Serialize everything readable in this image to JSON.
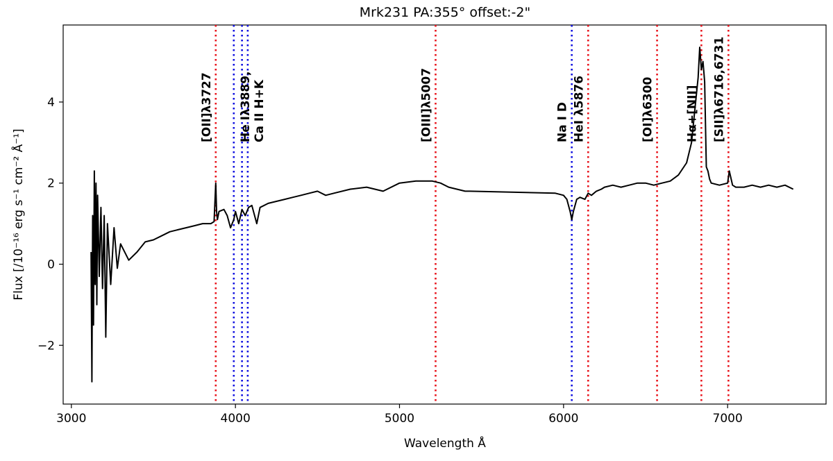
{
  "chart_data": {
    "type": "line",
    "title": "Mrk231 PA:355° offset:-2\"",
    "xlabel": "Wavelength Å",
    "ylabel": "Flux  [/10⁻¹⁶ erg s⁻¹ cm⁻² Å⁻¹]",
    "xlim": [
      2950,
      7600
    ],
    "ylim": [
      -3.45,
      5.9
    ],
    "xticks": [
      3000,
      4000,
      5000,
      6000,
      7000
    ],
    "yticks": [
      -2,
      0,
      2,
      4
    ],
    "grid": false,
    "series": [
      {
        "color": "#000000",
        "x": [
          3120,
          3125,
          3130,
          3135,
          3140,
          3145,
          3150,
          3155,
          3160,
          3170,
          3180,
          3190,
          3200,
          3210,
          3220,
          3240,
          3260,
          3280,
          3300,
          3350,
          3400,
          3450,
          3500,
          3550,
          3600,
          3650,
          3700,
          3750,
          3800,
          3850,
          3870,
          3880,
          3885,
          3890,
          3900,
          3930,
          3950,
          3970,
          3990,
          4000,
          4020,
          4040,
          4060,
          4080,
          4100,
          4130,
          4150,
          4200,
          4250,
          4300,
          4350,
          4400,
          4450,
          4500,
          4550,
          4600,
          4700,
          4800,
          4900,
          5000,
          5100,
          5200,
          5250,
          5300,
          5350,
          5400,
          5430,
          5950,
          6000,
          6020,
          6040,
          6050,
          6060,
          6080,
          6100,
          6130,
          6150,
          6170,
          6200,
          6230,
          6250,
          6300,
          6350,
          6400,
          6450,
          6500,
          6550,
          6600,
          6650,
          6700,
          6750,
          6780,
          6800,
          6820,
          6830,
          6840,
          6850,
          6860,
          6870,
          6880,
          6890,
          6900,
          6950,
          7000,
          7010,
          7030,
          7050,
          7100,
          7150,
          7200,
          7250,
          7300,
          7350,
          7400
        ],
        "y": [
          0.3,
          -2.9,
          1.2,
          -1.5,
          2.3,
          -0.5,
          2.0,
          -1.0,
          1.7,
          -0.3,
          1.4,
          -0.6,
          1.2,
          -1.8,
          1.0,
          -0.5,
          0.9,
          -0.1,
          0.5,
          0.1,
          0.3,
          0.55,
          0.6,
          0.7,
          0.8,
          0.85,
          0.9,
          0.95,
          1.0,
          1.0,
          1.05,
          2.0,
          1.3,
          1.1,
          1.3,
          1.35,
          1.2,
          0.9,
          1.1,
          1.3,
          1.0,
          1.35,
          1.2,
          1.4,
          1.45,
          1.0,
          1.4,
          1.5,
          1.55,
          1.6,
          1.65,
          1.7,
          1.75,
          1.8,
          1.7,
          1.75,
          1.85,
          1.9,
          1.8,
          2.0,
          2.05,
          2.05,
          2.0,
          1.9,
          1.85,
          1.8,
          1.8,
          1.75,
          1.7,
          1.6,
          1.3,
          1.1,
          1.3,
          1.6,
          1.65,
          1.6,
          1.75,
          1.7,
          1.8,
          1.85,
          1.9,
          1.95,
          1.9,
          1.95,
          2.0,
          2.0,
          1.95,
          2.0,
          2.05,
          2.2,
          2.5,
          3.0,
          3.8,
          4.6,
          5.35,
          4.8,
          5.0,
          4.5,
          2.4,
          2.3,
          2.1,
          2.0,
          1.95,
          2.0,
          2.3,
          1.95,
          1.9,
          1.9,
          1.95,
          1.9,
          1.95,
          1.9,
          1.95,
          1.85
        ]
      }
    ],
    "vlines": [
      {
        "x": 3880,
        "color": "#e8141c",
        "label": "[OII]λ3727"
      },
      {
        "x": 3990,
        "color": "#1010e0",
        "label": ""
      },
      {
        "x": 4040,
        "color": "#1010e0",
        "label": ""
      },
      {
        "x": 4075,
        "color": "#1010e0",
        "label": "He Iλ3889,\nCa II H+K"
      },
      {
        "x": 5220,
        "color": "#e8141c",
        "label": "[OIII]λ5007"
      },
      {
        "x": 6050,
        "color": "#1010e0",
        "label": "Na I D"
      },
      {
        "x": 6150,
        "color": "#e8141c",
        "label": "HeI λ5876"
      },
      {
        "x": 6570,
        "color": "#e8141c",
        "label": "[OI]λ6300"
      },
      {
        "x": 6840,
        "color": "#e8141c",
        "label": "Hα+[NII]"
      },
      {
        "x": 7005,
        "color": "#e8141c",
        "label": "[SII]λ6716,6731"
      }
    ]
  }
}
